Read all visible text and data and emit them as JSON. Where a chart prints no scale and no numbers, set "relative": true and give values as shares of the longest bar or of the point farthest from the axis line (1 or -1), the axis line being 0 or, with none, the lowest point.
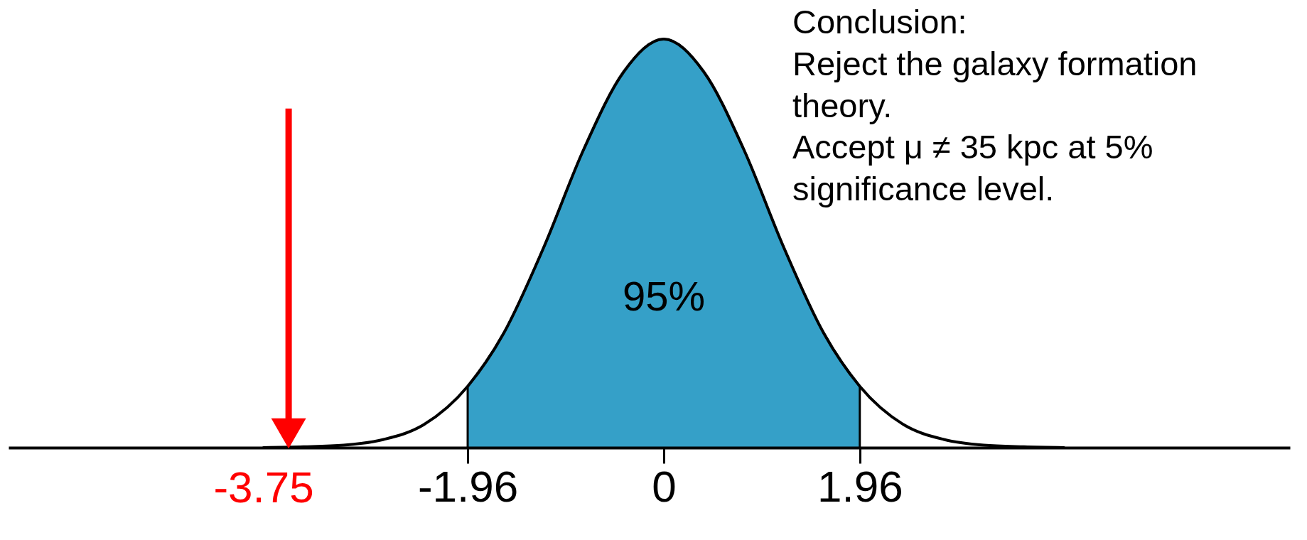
{
  "chart_data": {
    "type": "line",
    "relative": true,
    "xlim": [
      -6.55,
      6.26
    ],
    "xticks": [
      -1.96,
      0,
      1.96
    ],
    "series": [
      {
        "type": "area",
        "color": "#35a0c8",
        "x": [
          -1.96,
          -1.6,
          -1.2,
          -0.8,
          -0.4,
          0,
          0.4,
          0.8,
          1.2,
          1.6,
          1.96
        ],
        "values": [
          0.15,
          0.28,
          0.49,
          0.73,
          0.92,
          1,
          0.92,
          0.73,
          0.49,
          0.28,
          0.15
        ]
      },
      {
        "color": "#000000",
        "x": [
          -4,
          -3.6,
          -3.2,
          -2.8,
          -2.4,
          -1.96,
          -1.6,
          -1.2,
          -0.8,
          -0.4,
          0,
          0.4,
          0.8,
          1.2,
          1.6,
          1.96,
          2.4,
          2.8,
          3.2,
          3.6,
          4
        ],
        "values": [
          0,
          0.002,
          0.006,
          0.02,
          0.056,
          0.15,
          0.28,
          0.49,
          0.73,
          0.92,
          1,
          0.92,
          0.73,
          0.49,
          0.28,
          0.15,
          0.056,
          0.02,
          0.006,
          0.002,
          0
        ]
      }
    ],
    "ref_lines": [
      {
        "axis": "x",
        "value": -3.75,
        "label": "-3.75",
        "color": "#ff0000"
      }
    ],
    "annotations": [
      "95%",
      "Conclusion:\nReject the galaxy formation\ntheory.\nAccept μ ≠ 35 kpc at 5%\nsignificance level."
    ]
  }
}
